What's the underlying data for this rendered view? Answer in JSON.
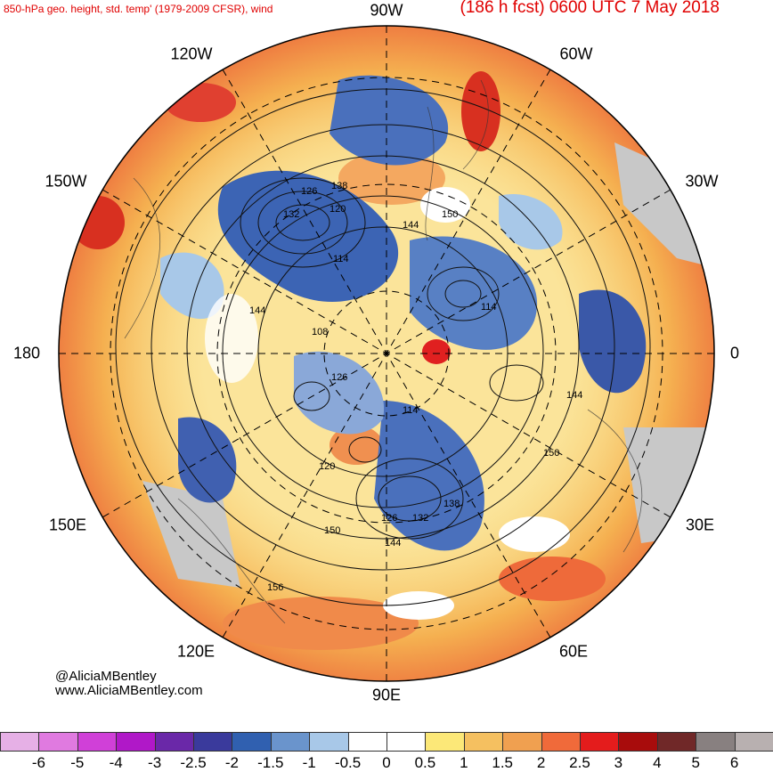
{
  "header": {
    "left_title": "850-hPa geo. height, std. temp' (1979-2009 CFSR), wind",
    "right_title": "(186 h fcst) 0600 UTC 7 May 2018"
  },
  "credits": {
    "twitter": "@AliciaMBentley",
    "website": "www.AliciaMBentley.com"
  },
  "longitude_labels": [
    "90W",
    "60W",
    "30W",
    "0",
    "30E",
    "60E",
    "90E",
    "120E",
    "150E",
    "180",
    "150W",
    "120W"
  ],
  "contour_labels": [
    "126",
    "138",
    "120",
    "132",
    "144",
    "150",
    "114",
    "144",
    "108",
    "114",
    "126",
    "114",
    "144",
    "150",
    "120",
    "138",
    "132",
    "126",
    "144",
    "150",
    "156"
  ],
  "colorbar": {
    "ticks": [
      "-6",
      "-5",
      "-4",
      "-3",
      "-2.5",
      "-2",
      "-1.5",
      "-1",
      "-0.5",
      "0",
      "0.5",
      "1",
      "1.5",
      "2",
      "2.5",
      "3",
      "4",
      "5",
      "6"
    ],
    "colors": [
      "#e6b0e6",
      "#e07ae0",
      "#d040d8",
      "#b018c8",
      "#6a28a8",
      "#3a3a9c",
      "#3060b0",
      "#6a94cc",
      "#a8c8e8",
      "#ffffff",
      "#ffffff",
      "#fce878",
      "#f5c060",
      "#f0a050",
      "#f06a3a",
      "#e41c1c",
      "#a80c0c",
      "#702828",
      "#888080",
      "#b8b0b0"
    ]
  }
}
